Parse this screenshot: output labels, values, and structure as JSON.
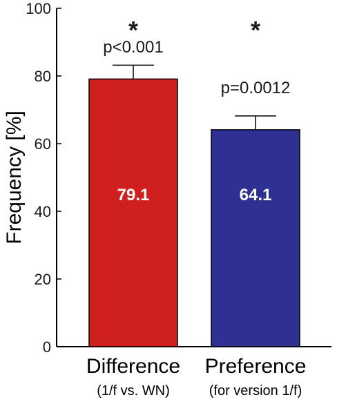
{
  "chart_data": {
    "type": "bar",
    "title": "",
    "xlabel": "",
    "ylabel": "Frequency [%]",
    "ylim": [
      0,
      100
    ],
    "yticks": [
      0,
      20,
      40,
      60,
      80,
      100
    ],
    "grid": false,
    "categories": [
      {
        "label": "Difference",
        "sublabel": "(1/f vs. WN)"
      },
      {
        "label": "Preference",
        "sublabel": "(for version 1/f)"
      }
    ],
    "values": [
      79.1,
      64.1
    ],
    "value_labels": [
      "79.1",
      "64.1"
    ],
    "error_upper": [
      83.2,
      68.2
    ],
    "colors": [
      "#d01f1f",
      "#2e3192"
    ],
    "annotations": [
      {
        "significance": "*",
        "p_text": "p<0.001"
      },
      {
        "significance": "*",
        "p_text": "p=0.0012"
      }
    ]
  }
}
